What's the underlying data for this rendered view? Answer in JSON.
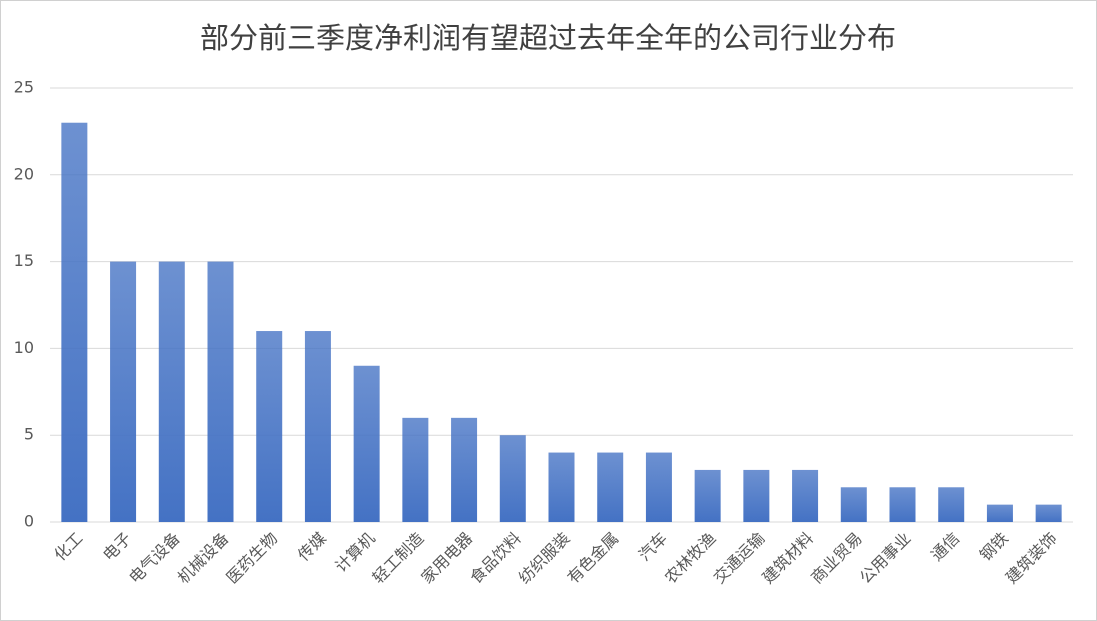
{
  "chart_data": {
    "type": "bar",
    "title": "部分前三季度净利润有望超过去年全年的公司行业分布",
    "categories": [
      "化工",
      "电子",
      "电气设备",
      "机械设备",
      "医药生物",
      "传媒",
      "计算机",
      "轻工制造",
      "家用电器",
      "食品饮料",
      "纺织服装",
      "有色金属",
      "汽车",
      "农林牧渔",
      "交通运输",
      "建筑材料",
      "商业贸易",
      "公用事业",
      "通信",
      "钢铁",
      "建筑装饰"
    ],
    "values": [
      23,
      15,
      15,
      15,
      11,
      11,
      9,
      6,
      6,
      5,
      4,
      4,
      4,
      3,
      3,
      3,
      2,
      2,
      2,
      1,
      1
    ],
    "color": "#4472c4",
    "ylim": [
      0,
      25
    ],
    "yticks": [
      0,
      5,
      10,
      15,
      20,
      25
    ],
    "grid": true
  }
}
